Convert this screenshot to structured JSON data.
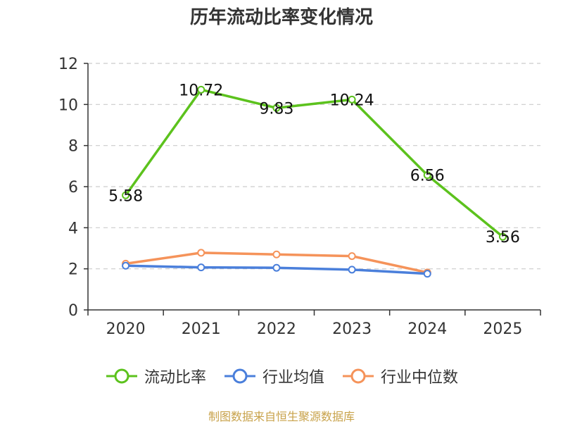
{
  "title": "历年流动比率变化情况",
  "source": "制图数据来自恒生聚源数据库",
  "chart_data": {
    "type": "line",
    "categories": [
      "2020",
      "2021",
      "2022",
      "2023",
      "2024",
      "2025"
    ],
    "ylim": [
      0,
      12
    ],
    "yticks": [
      0,
      2,
      4,
      6,
      8,
      10,
      12
    ],
    "grid": true,
    "legend_position": "bottom",
    "series": [
      {
        "name": "流动比率",
        "color": "#5cc21d",
        "values": [
          5.58,
          10.72,
          9.83,
          10.24,
          6.56,
          3.56
        ],
        "labels": [
          "5.58",
          "10.72",
          "9.83",
          "10.24",
          "6.56",
          "3.56"
        ]
      },
      {
        "name": "行业均值",
        "color": "#4a7fdb",
        "values": [
          2.15,
          2.07,
          2.05,
          1.96,
          1.76,
          null
        ]
      },
      {
        "name": "行业中位数",
        "color": "#f5935a",
        "values": [
          2.25,
          2.78,
          2.7,
          2.62,
          1.82,
          null
        ]
      }
    ]
  }
}
